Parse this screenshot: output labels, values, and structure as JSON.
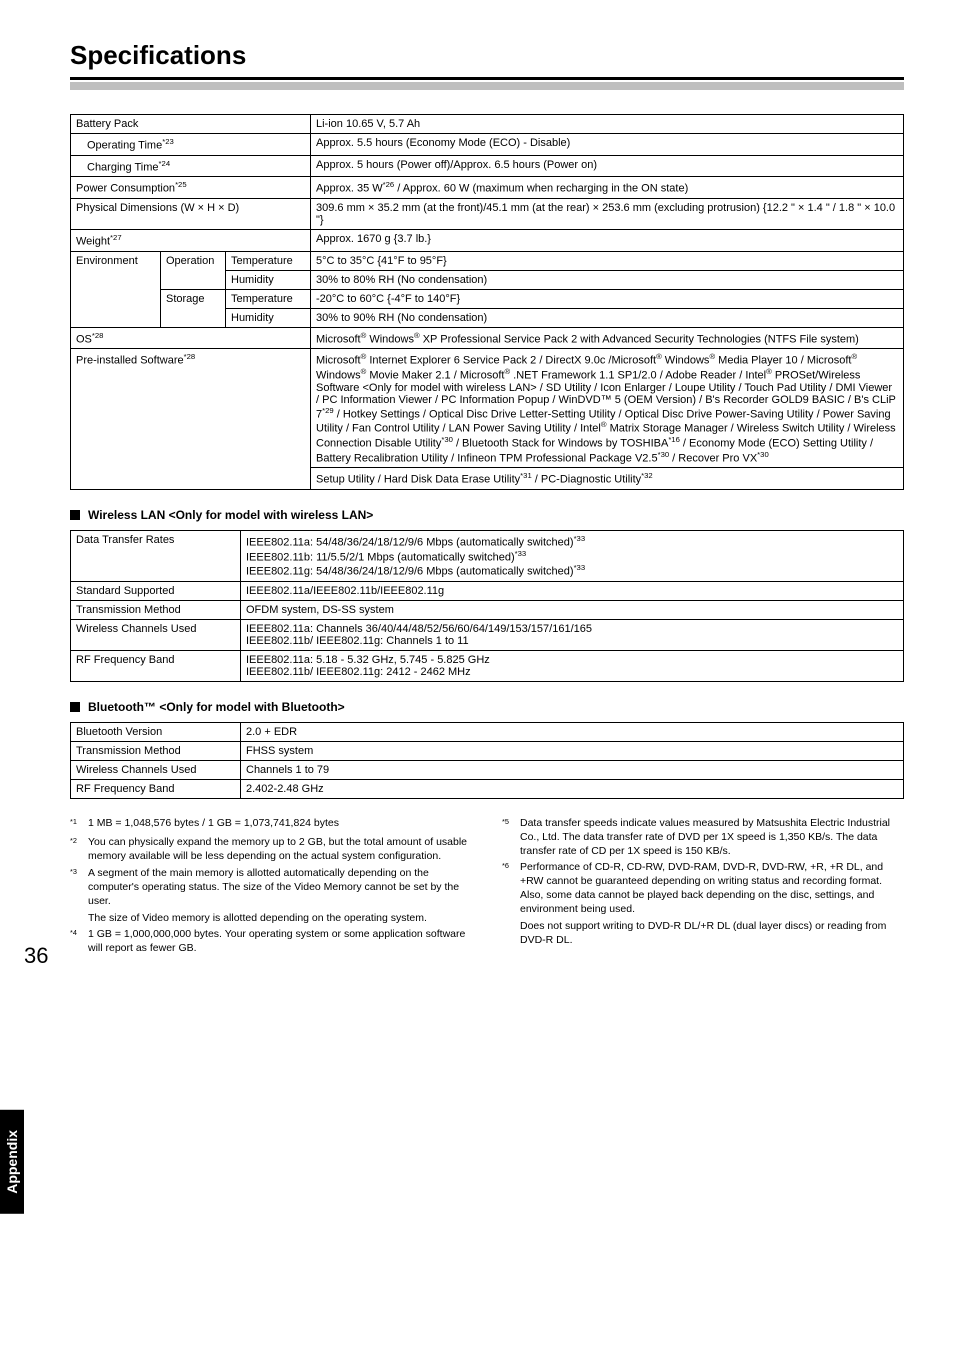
{
  "title": "Specifications",
  "sideTab": "Appendix",
  "pageNum": "36",
  "mainTable": {
    "rows": [
      {
        "label": "Battery Pack",
        "value": "Li-ion 10.65 V, 5.7 Ah",
        "labelCols": 3,
        "indent": 0
      },
      {
        "label": "Operating Time",
        "sup": "*23",
        "value": "Approx. 5.5 hours (Economy Mode (ECO) - Disable)",
        "labelCols": 3,
        "indent": 1
      },
      {
        "label": "Charging Time",
        "sup": "*24",
        "value": "Approx. 5 hours (Power off)/Approx. 6.5 hours (Power on)",
        "labelCols": 3,
        "indent": 1
      },
      {
        "label": "Power Consumption",
        "sup": "*25",
        "value": "Approx. 35 W<sup>*26</sup> / Approx. 60 W (maximum when recharging in the ON state)",
        "labelCols": 3,
        "indent": 0,
        "html": true
      },
      {
        "label": "Physical Dimensions (W × H × D)",
        "value": "309.6 mm × 35.2 mm (at the front)/45.1 mm (at the rear) × 253.6 mm (excluding protrusion) {12.2 \" × 1.4 \" / 1.8 \" × 10.0 \"}",
        "labelCols": 3,
        "indent": 0
      },
      {
        "label": "Weight",
        "sup": "*27",
        "value": "Approx. 1670 g {3.7 lb.}",
        "labelCols": 3,
        "indent": 0
      }
    ],
    "envLabel": "Environment",
    "envOpLabel": "Operation",
    "envStLabel": "Storage",
    "envRows": [
      {
        "sub": "Temperature",
        "value": "5°C to 35°C {41°F to 95°F}"
      },
      {
        "sub": "Humidity",
        "value": "30% to 80% RH  (No condensation)"
      },
      {
        "sub": "Temperature",
        "value": "-20°C to 60°C {-4°F to 140°F}"
      },
      {
        "sub": "Humidity",
        "value": "30% to 90% RH  (No condensation)"
      }
    ],
    "osLabel": "OS",
    "osSup": "*28",
    "osValue": "Microsoft<sup>®</sup> Windows<sup>®</sup> XP Professional Service Pack 2 with Advanced Security Technologies (NTFS File system)",
    "preLabel": "Pre-installed Software",
    "preSup": "*28",
    "preValue": "Microsoft<sup>®</sup> Internet Explorer 6 Service Pack 2 / DirectX 9.0c /Microsoft<sup>®</sup> Windows<sup>®</sup> Media Player 10 / Microsoft<sup>®</sup> Windows<sup>®</sup> Movie Maker 2.1 / Microsoft<sup>®</sup> .NET Framework 1.1 SP1/2.0 / Adobe Reader / Intel<sup>®</sup> PROSet/Wireless Software &lt;Only for model with wireless LAN&gt; / SD Utility / Icon Enlarger / Loupe Utility / Touch Pad Utility / DMI Viewer / PC Information Viewer / PC Information Popup / WinDVD™ 5 (OEM Version) / B's Recorder GOLD9 BASIC / B's CLiP 7<sup>*29</sup> / Hotkey Settings / Optical Disc Drive Letter-Setting Utility / Optical Disc Drive Power-Saving Utility / Power Saving Utility / Fan Control Utility / LAN Power Saving Utility / Intel<sup>®</sup> Matrix Storage Manager / Wireless Switch Utility / Wireless Connection Disable Utility<sup>*30</sup> / Bluetooth Stack for Windows by TOSHIBA<sup>*16</sup> / Economy Mode (ECO) Setting Utility / Battery Recalibration Utility / Infineon TPM Professional Package V2.5<sup>*30</sup> / Recover Pro VX<sup>*30</sup>",
    "preValue2": "Setup Utility / Hard Disk Data Erase Utility<sup>*31</sup> / PC-Diagnostic Utility<sup>*32</sup>"
  },
  "wlanHead": "Wireless LAN <Only for model with wireless LAN>",
  "wlanTable": {
    "rows": [
      {
        "label": "Data Transfer Rates",
        "value": "IEEE802.11a: 54/48/36/24/18/12/9/6 Mbps (automatically switched)<sup>*33</sup><br>IEEE802.11b: 11/5.5/2/1 Mbps (automatically switched)<sup>*33</sup><br>IEEE802.11g: 54/48/36/24/18/12/9/6 Mbps (automatically switched)<sup>*33</sup>"
      },
      {
        "label": "Standard Supported",
        "value": "IEEE802.11a/IEEE802.11b/IEEE802.11g"
      },
      {
        "label": "Transmission Method",
        "value": "OFDM system, DS-SS system"
      },
      {
        "label": "Wireless Channels Used",
        "value": "IEEE802.11a: Channels 36/40/44/48/52/56/60/64/149/153/157/161/165<br>IEEE802.11b/ IEEE802.11g: Channels 1 to 11"
      },
      {
        "label": "RF Frequency Band",
        "value": "IEEE802.11a: 5.18 - 5.32 GHz, 5.745 - 5.825 GHz<br>IEEE802.11b/ IEEE802.11g: 2412 - 2462 MHz"
      }
    ]
  },
  "btHead": "Bluetooth™ <Only for model with Bluetooth>",
  "btTable": {
    "rows": [
      {
        "label": "Bluetooth Version",
        "value": "2.0 + EDR"
      },
      {
        "label": "Transmission Method",
        "value": "FHSS system"
      },
      {
        "label": "Wireless Channels Used",
        "value": "Channels 1 to 79"
      },
      {
        "label": "RF Frequency Band",
        "value": "2.402-2.48 GHz"
      }
    ]
  },
  "footnotesLeft": [
    {
      "n": "*1",
      "t": "1 MB = 1,048,576 bytes / 1 GB = 1,073,741,824 bytes"
    },
    {
      "n": "*2",
      "t": "You can physically expand the memory up to 2 GB, but the total amount of usable memory available will be less depending on the actual system configuration."
    },
    {
      "n": "*3",
      "t": "A segment of the main memory is allotted automatically depending on the computer's operating status. The size of the Video Memory cannot be set by the user.\nThe size of Video memory is allotted depending on the operating system."
    },
    {
      "n": "*4",
      "t": "1 GB = 1,000,000,000 bytes. Your operating system or some application software will report as fewer GB."
    }
  ],
  "footnotesRight": [
    {
      "n": "*5",
      "t": "Data transfer speeds indicate values measured by Matsushita Electric Industrial Co., Ltd. The data transfer rate of DVD per 1X speed is 1,350 KB/s. The data transfer rate of CD per 1X speed is 150 KB/s."
    },
    {
      "n": "*6",
      "t": "Performance of CD-R, CD-RW, DVD-RAM, DVD-R, DVD-RW, +R, +R DL, and +RW cannot be guaranteed depending on writing status and recording format. Also, some data cannot be played back depending on the disc, settings, and environment being used.\nDoes not support writing to DVD-R DL/+R DL (dual layer discs) or reading from DVD-R DL."
    }
  ]
}
